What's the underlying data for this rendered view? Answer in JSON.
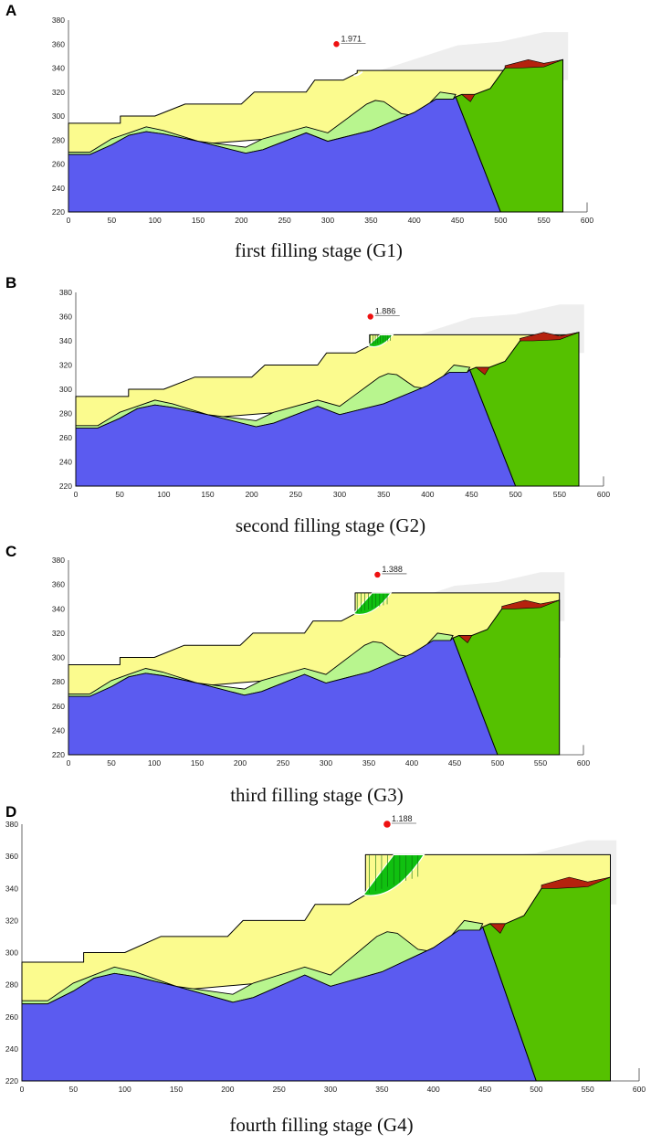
{
  "colors": {
    "bedrock": "#5b5bf0",
    "backfill": "#fbfb8e",
    "weathered": "#b8f58e",
    "retaining_body": "#55c100",
    "thin_layer": "#b5220e",
    "slip_mass": "#10c010",
    "ghost_terrain": "#eeeeee",
    "fos_marker": "#ee1111"
  },
  "panels": [
    {
      "letter": "A",
      "caption": "first filling stage (G1)",
      "fos": "1.971",
      "fill_level_m": 338
    },
    {
      "letter": "B",
      "caption": "second filling stage (G2)",
      "fos": "1.886",
      "fill_level_m": 345
    },
    {
      "letter": "C",
      "caption": "third filling stage (G3)",
      "fos": "1.388",
      "fill_level_m": 353
    },
    {
      "letter": "D",
      "caption": "fourth filling stage (G4)",
      "fos": "1.188",
      "fill_level_m": 361
    }
  ],
  "axes": {
    "x_ticks": [
      "0",
      "50",
      "100",
      "150",
      "200",
      "250",
      "300",
      "350",
      "400",
      "450",
      "500",
      "550",
      "600"
    ],
    "y_ticks": [
      "220",
      "240",
      "260",
      "280",
      "300",
      "320",
      "340",
      "360",
      "380"
    ],
    "x_range": [
      0,
      600
    ],
    "y_range": [
      220,
      380
    ]
  },
  "chart_data": [
    {
      "type": "diagram",
      "title": "first filling stage (G1)",
      "factor_of_safety": 1.971,
      "fill_elevation": 338,
      "xlim": [
        0,
        600
      ],
      "ylim": [
        220,
        380
      ]
    },
    {
      "type": "diagram",
      "title": "second filling stage (G2)",
      "factor_of_safety": 1.886,
      "fill_elevation": 345,
      "xlim": [
        0,
        600
      ],
      "ylim": [
        220,
        380
      ]
    },
    {
      "type": "diagram",
      "title": "third filling stage (G3)",
      "factor_of_safety": 1.388,
      "fill_elevation": 353,
      "xlim": [
        0,
        600
      ],
      "ylim": [
        220,
        380
      ]
    },
    {
      "type": "diagram",
      "title": "fourth filling stage (G4)",
      "factor_of_safety": 1.188,
      "fill_elevation": 361,
      "xlim": [
        0,
        600
      ],
      "ylim": [
        220,
        380
      ]
    }
  ]
}
